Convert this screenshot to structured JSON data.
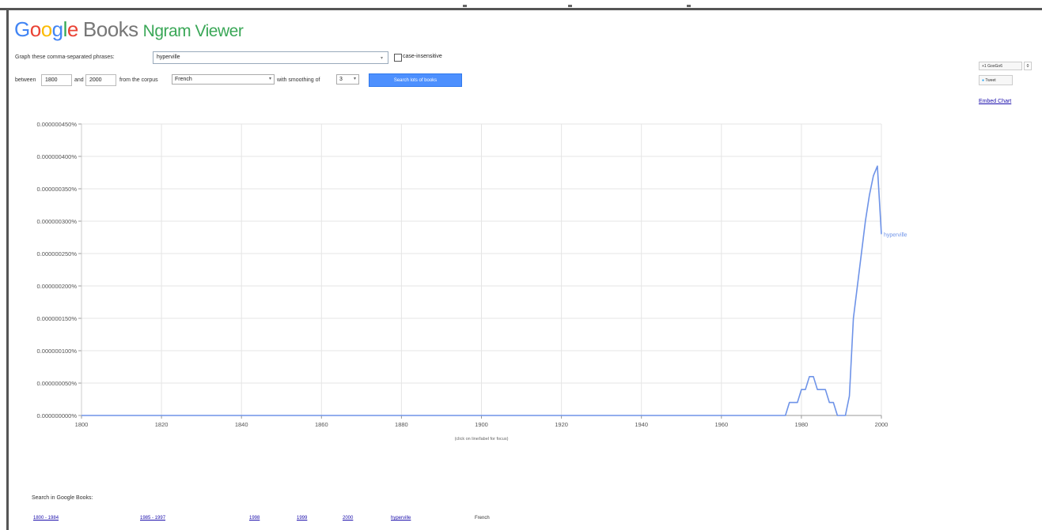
{
  "header": {
    "logo_google": [
      "G",
      "o",
      "o",
      "g",
      "l",
      "e"
    ],
    "logo_books": "Books",
    "logo_ngram": "Ngram Viewer"
  },
  "form": {
    "phrase_label": "Graph these comma-separated phrases:",
    "phrase_value": "hyperville",
    "case_label": "case-insensitive",
    "between_label": "between",
    "start_year": "1800",
    "and_label": "and",
    "end_year": "2000",
    "corpus_label": "from the corpus",
    "corpus_value": "French",
    "smoothing_label": "with smoothing of",
    "smoothing_value": "3",
    "search_button": "Search lots of books"
  },
  "social": {
    "gplus_label": "+1 GooGo6",
    "gplus_count": "0",
    "tweet_label": "Tweet",
    "embed_label": "Embed Chart"
  },
  "chart_data": {
    "type": "line",
    "y_ticks": [
      "0.000000450%",
      "0.000000400%",
      "0.000000350%",
      "0.000000300%",
      "0.000000250%",
      "0.000000200%",
      "0.000000150%",
      "0.000000100%",
      "0.000000050%",
      "0.000000000%"
    ],
    "x_ticks": [
      "1800",
      "1820",
      "1840",
      "1860",
      "1880",
      "1900",
      "1920",
      "1940",
      "1960",
      "1980",
      "2000"
    ],
    "xlim": [
      1800,
      2000
    ],
    "ylim": [
      0,
      4.5e-07
    ],
    "grid": true,
    "hint": "(click on line/label for focus)",
    "colors": {
      "line": "#6e93e8",
      "grid": "#e5e5e5"
    },
    "series": [
      {
        "name": "hyperville",
        "x": [
          1800,
          1976,
          1977,
          1979,
          1980,
          1981,
          1982,
          1983,
          1984,
          1985,
          1986,
          1987,
          1988,
          1989,
          1990,
          1991,
          1992,
          1993,
          1994,
          1995,
          1996,
          1997,
          1998,
          1999,
          2000
        ],
        "y": [
          0,
          0,
          2e-08,
          2e-08,
          4e-08,
          4e-08,
          6e-08,
          6e-08,
          4e-08,
          4e-08,
          4e-08,
          2e-08,
          2e-08,
          0,
          0,
          0,
          3e-08,
          1.5e-07,
          2e-07,
          2.5e-07,
          3e-07,
          3.4e-07,
          3.7e-07,
          3.85e-07,
          2.8e-07
        ]
      }
    ]
  },
  "search_google_books": {
    "title": "Search in Google Books:",
    "links": [
      "1800 - 1984",
      "1985 - 1997",
      "1998",
      "1999",
      "2000",
      "hyperville"
    ],
    "corpus": "French"
  }
}
